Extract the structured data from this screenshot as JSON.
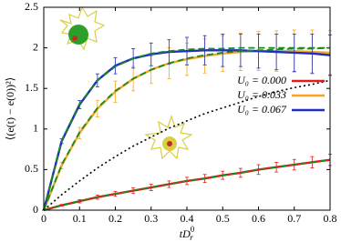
{
  "chart_data": {
    "type": "line",
    "xlabel": {
      "main": "tD",
      "sub": "r",
      "sup": "0"
    },
    "ylabel": "⟨(e(t) − e(0))²⟩",
    "x": [
      0,
      0.05,
      0.1,
      0.15,
      0.2,
      0.25,
      0.3,
      0.35,
      0.4,
      0.45,
      0.5,
      0.55,
      0.6,
      0.65,
      0.7,
      0.75,
      0.8
    ],
    "series": [
      {
        "name": "U₀ = 0.000",
        "color": "#e41a1c",
        "values": [
          0,
          0.06,
          0.11,
          0.16,
          0.2,
          0.24,
          0.28,
          0.32,
          0.36,
          0.39,
          0.43,
          0.46,
          0.5,
          0.53,
          0.56,
          0.59,
          0.62
        ],
        "errors": [
          0,
          0.01,
          0.02,
          0.025,
          0.03,
          0.035,
          0.04,
          0.04,
          0.045,
          0.05,
          0.05,
          0.055,
          0.06,
          0.06,
          0.065,
          0.07,
          0.07
        ]
      },
      {
        "name": "U₀ = 0.033",
        "color": "#f5a623",
        "values": [
          0,
          0.55,
          0.95,
          1.25,
          1.46,
          1.62,
          1.73,
          1.81,
          1.86,
          1.9,
          1.93,
          1.95,
          1.96,
          1.96,
          1.96,
          1.95,
          1.94
        ],
        "errors": [
          0,
          0.04,
          0.07,
          0.1,
          0.13,
          0.15,
          0.17,
          0.19,
          0.2,
          0.21,
          0.22,
          0.23,
          0.24,
          0.25,
          0.26,
          0.27,
          0.27
        ]
      },
      {
        "name": "U₀ = 0.067",
        "color": "#1f2fbf",
        "values": [
          0,
          0.85,
          1.3,
          1.6,
          1.78,
          1.87,
          1.92,
          1.95,
          1.96,
          1.97,
          1.97,
          1.97,
          1.96,
          1.95,
          1.94,
          1.93,
          1.91
        ],
        "errors": [
          0,
          0.03,
          0.05,
          0.08,
          0.1,
          0.12,
          0.14,
          0.15,
          0.17,
          0.18,
          0.2,
          0.2,
          0.21,
          0.22,
          0.23,
          0.24,
          0.25
        ]
      }
    ],
    "fits": {
      "color": "#1a8a1a",
      "series": [
        [
          0,
          0.06,
          0.11,
          0.16,
          0.2,
          0.24,
          0.28,
          0.32,
          0.36,
          0.39,
          0.43,
          0.46,
          0.5,
          0.53,
          0.56,
          0.59,
          0.62
        ],
        [
          0,
          0.56,
          0.96,
          1.26,
          1.47,
          1.62,
          1.73,
          1.81,
          1.87,
          1.91,
          1.94,
          1.96,
          1.97,
          1.98,
          1.99,
          1.99,
          2.0
        ],
        [
          0,
          0.86,
          1.31,
          1.6,
          1.77,
          1.87,
          1.93,
          1.96,
          1.98,
          1.99,
          1.99,
          2.0,
          2.0,
          2.0,
          2.0,
          2.0,
          2.0
        ]
      ]
    },
    "reference": {
      "color": "#000000",
      "values": [
        0,
        0.19,
        0.36,
        0.52,
        0.66,
        0.79,
        0.9,
        1.01,
        1.1,
        1.19,
        1.26,
        1.33,
        1.4,
        1.46,
        1.51,
        1.55,
        1.6
      ]
    },
    "xlim": [
      0,
      0.8
    ],
    "xticks": [
      0,
      0.1,
      0.2,
      0.3,
      0.4,
      0.5,
      0.6,
      0.7,
      0.8
    ],
    "ylim": [
      0,
      2.5
    ],
    "yticks": [
      0,
      0.5,
      1,
      1.5,
      2,
      2.5
    ],
    "legend": "lower-right"
  }
}
